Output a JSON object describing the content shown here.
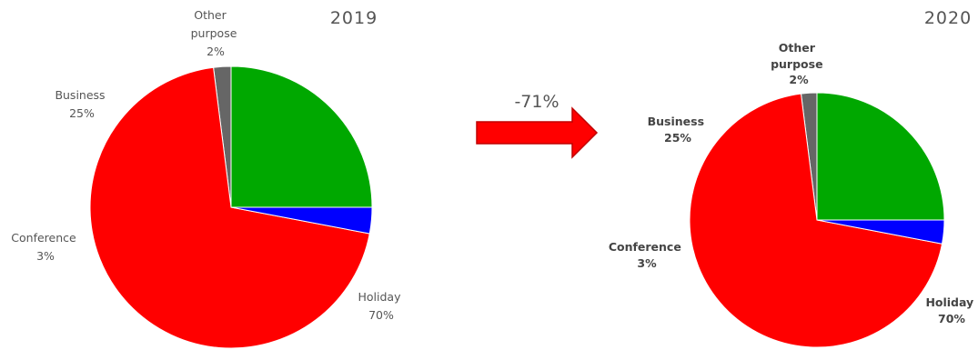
{
  "colors": {
    "Holiday": "#ff0000",
    "Conference": "#0000ff",
    "Business": "#00a800",
    "Other purpose": "#666666",
    "arrow": "#ff0000",
    "arrow_stroke": "#c00000"
  },
  "change": {
    "label": "-71%"
  },
  "chart_data": [
    {
      "type": "pie",
      "title": "2019",
      "categories": [
        "Other purpose",
        "Holiday",
        "Conference",
        "Business"
      ],
      "values": [
        2,
        70,
        3,
        25
      ],
      "labels": [
        {
          "name": "Other",
          "name2": "purpose",
          "pct": "2%"
        },
        {
          "name": "Holiday",
          "name2": "",
          "pct": "70%"
        },
        {
          "name": "Conference",
          "name2": "",
          "pct": "3%"
        },
        {
          "name": "Business",
          "name2": "",
          "pct": "25%"
        }
      ]
    },
    {
      "type": "pie",
      "title": "2020",
      "categories": [
        "Other purpose",
        "Holiday",
        "Conference",
        "Business"
      ],
      "values": [
        2,
        70,
        3,
        25
      ],
      "labels": [
        {
          "name": "Other",
          "name2": "purpose",
          "pct": "2%"
        },
        {
          "name": "Holiday",
          "name2": "",
          "pct": "70%"
        },
        {
          "name": "Conference",
          "name2": "",
          "pct": "3%"
        },
        {
          "name": "Business",
          "name2": "",
          "pct": "25%"
        }
      ]
    }
  ]
}
